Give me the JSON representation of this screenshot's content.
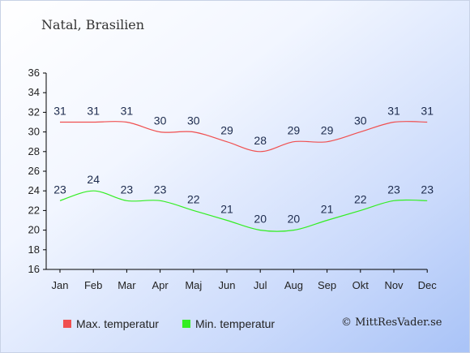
{
  "location": "Natal, Brasilien",
  "credit": "© MittResVader.se",
  "chart_data": {
    "type": "line",
    "categories": [
      "Jan",
      "Feb",
      "Mar",
      "Apr",
      "Maj",
      "Jun",
      "Jul",
      "Aug",
      "Sep",
      "Okt",
      "Nov",
      "Dec"
    ],
    "series": [
      {
        "name": "Max. temperatur",
        "color": "#f04f4f",
        "values": [
          31,
          31,
          31,
          30,
          30,
          29,
          28,
          29,
          29,
          30,
          31,
          31
        ]
      },
      {
        "name": "Min. temperatur",
        "color": "#33ee22",
        "values": [
          23,
          24,
          23,
          23,
          22,
          21,
          20,
          20,
          21,
          22,
          23,
          23
        ]
      }
    ],
    "yticks": [
      16,
      18,
      20,
      22,
      24,
      26,
      28,
      30,
      32,
      34,
      36
    ],
    "ylim": [
      16,
      36
    ],
    "grid": false
  }
}
